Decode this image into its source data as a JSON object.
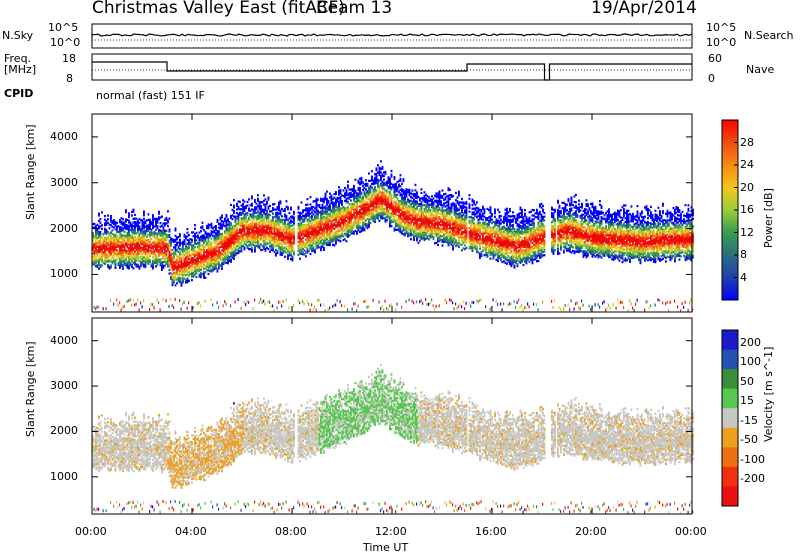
{
  "header": {
    "title": "Christmas Valley East (fitACF)",
    "beam": "Beam 13",
    "date": "19/Apr/2014"
  },
  "status_panels": {
    "nsky_label": "N.Sky",
    "nsky_ticks": [
      "10^5",
      "10^0"
    ],
    "nsearch_label": "N.Search",
    "nsearch_ticks": [
      "10^5",
      "10^0"
    ],
    "freq_label_line1": "Freq.",
    "freq_label_line2": "[MHz]",
    "freq_ticks": [
      "18",
      "8"
    ],
    "nave_label": "Nave",
    "nave_ticks": [
      "60",
      "0"
    ],
    "cpid_label": "CPID",
    "cpid_value": "normal (fast) 151 IF"
  },
  "chart_data": [
    {
      "type": "heatmap",
      "parameter": "Power",
      "ylabel": "Slant Range [km]",
      "yticks": [
        1000,
        2000,
        3000,
        4000
      ],
      "ylim": [
        180,
        4500
      ],
      "colorbar_label": "Power [dB]",
      "colorbar_ticks": [
        4,
        8,
        12,
        16,
        20,
        24,
        28
      ],
      "colorbar_range": [
        0,
        32
      ],
      "colors": [
        "#0000ff",
        "#1e3fb0",
        "#2a7a6a",
        "#3c9e50",
        "#9ccc3a",
        "#f2c81e",
        "#f58a10",
        "#f04a10",
        "#e01010",
        "#ff0000"
      ],
      "band_center_km": [
        [
          0.0,
          1600
        ],
        [
          1.0,
          1620
        ],
        [
          2.0,
          1640
        ],
        [
          3.0,
          1620
        ],
        [
          3.2,
          1200
        ],
        [
          4.0,
          1350
        ],
        [
          5.0,
          1550
        ],
        [
          6.0,
          2000
        ],
        [
          7.0,
          2000
        ],
        [
          8.0,
          1800
        ],
        [
          9.0,
          2000
        ],
        [
          10.0,
          2200
        ],
        [
          11.0,
          2500
        ],
        [
          11.5,
          2700
        ],
        [
          12.0,
          2500
        ],
        [
          12.5,
          2300
        ],
        [
          13.0,
          2200
        ],
        [
          14.0,
          2150
        ],
        [
          15.0,
          1950
        ],
        [
          16.0,
          1800
        ],
        [
          17.0,
          1650
        ],
        [
          18.0,
          1850
        ],
        [
          19.0,
          2000
        ],
        [
          20.0,
          1850
        ],
        [
          21.0,
          1800
        ],
        [
          22.0,
          1750
        ],
        [
          23.0,
          1800
        ],
        [
          24.0,
          1800
        ]
      ]
    },
    {
      "type": "heatmap",
      "parameter": "Velocity",
      "ylabel": "Slant Range [km]",
      "yticks": [
        1000,
        2000,
        3000,
        4000
      ],
      "ylim": [
        180,
        4500
      ],
      "colorbar_label": "Velocity [m s^-1]",
      "colorbar_ticks": [
        200,
        100,
        50,
        15,
        -15,
        -50,
        -100,
        -200
      ],
      "colors": [
        "#1a1acc",
        "#2550b4",
        "#3a8e3a",
        "#56c850",
        "#c8c8c0",
        "#f0a020",
        "#f07010",
        "#f03010",
        "#e81010"
      ]
    }
  ],
  "time_axis": {
    "xlabel": "Time UT",
    "ticks": [
      "00:00",
      "04:00",
      "08:00",
      "12:00",
      "16:00",
      "20:00",
      "00:00"
    ],
    "xlim_hours": [
      0,
      24
    ],
    "data_gaps_hours": [
      [
        8.05,
        8.2
      ],
      [
        15.0,
        15.05
      ],
      [
        18.1,
        18.3
      ],
      [
        18.5,
        18.55
      ]
    ]
  }
}
